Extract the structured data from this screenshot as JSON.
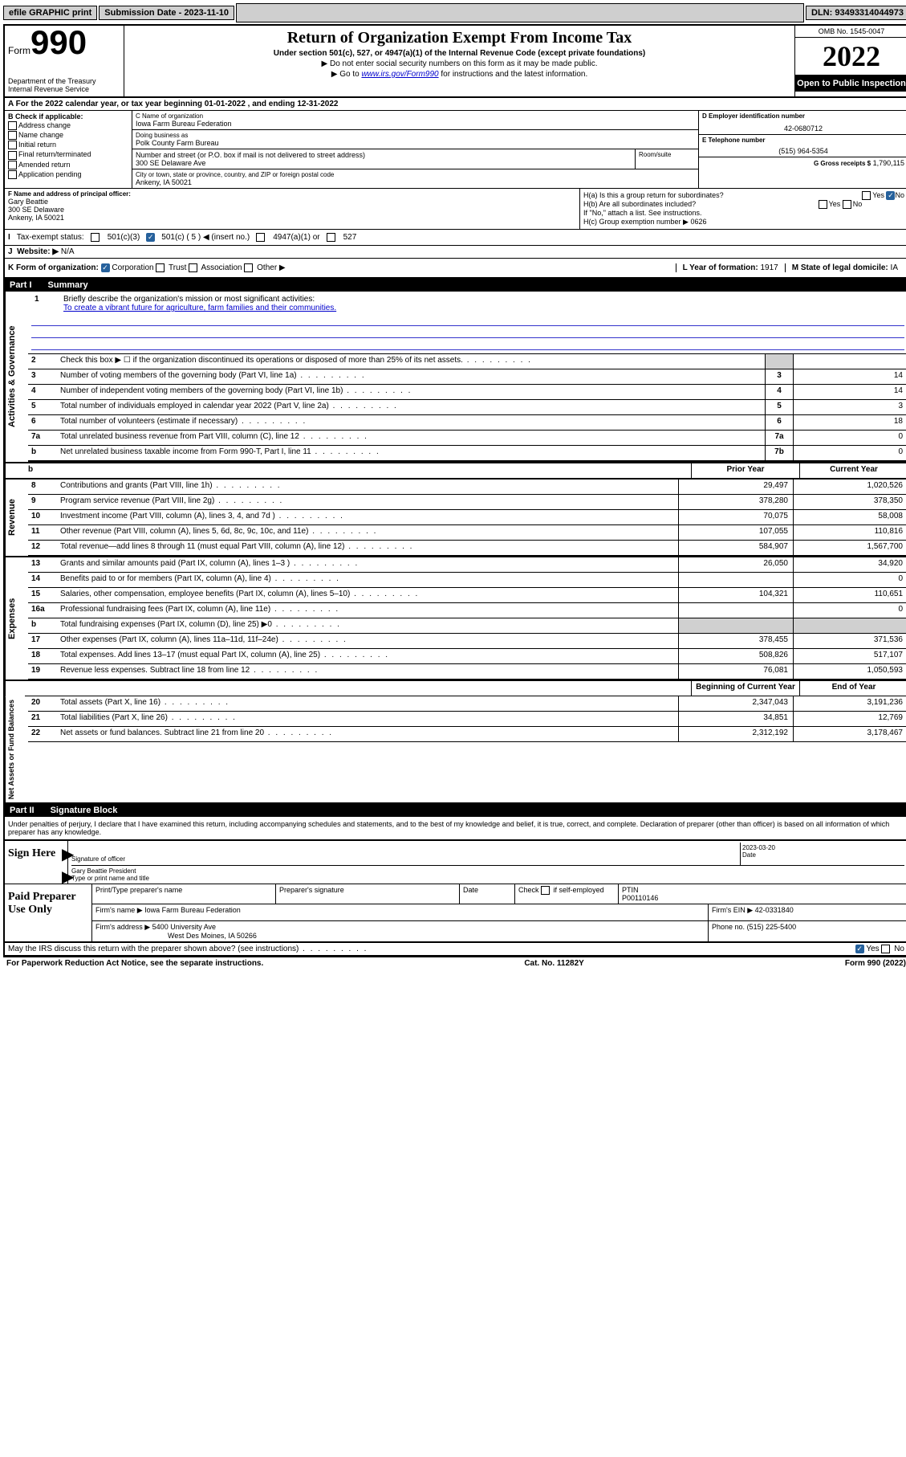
{
  "topbar": {
    "efile": "efile GRAPHIC print",
    "sub_label": "Submission Date ‐ 2023-11-10",
    "dln": "DLN: 93493314044973"
  },
  "header": {
    "form_word": "Form",
    "form_num": "990",
    "dept": "Department of the Treasury Internal Revenue Service",
    "title": "Return of Organization Exempt From Income Tax",
    "sub": "Under section 501(c), 527, or 4947(a)(1) of the Internal Revenue Code (except private foundations)",
    "instr1": "▶ Do not enter social security numbers on this form as it may be made public.",
    "instr2_pre": "▶ Go to ",
    "instr2_link": "www.irs.gov/Form990",
    "instr2_post": " for instructions and the latest information.",
    "omb": "OMB No. 1545-0047",
    "year": "2022",
    "open": "Open to Public Inspection"
  },
  "row_a": "A For the 2022 calendar year, or tax year beginning 01-01-2022   , and ending 12-31-2022",
  "col_b": {
    "head": "B Check if applicable:",
    "items": [
      "Address change",
      "Name change",
      "Initial return",
      "Final return/terminated",
      "Amended return",
      "Application pending"
    ]
  },
  "col_c": {
    "name_lab": "C Name of organization",
    "name": "Iowa Farm Bureau Federation",
    "dba_lab": "Doing business as",
    "dba": "Polk County Farm Bureau",
    "street_lab": "Number and street (or P.O. box if mail is not delivered to street address)",
    "room_lab": "Room/suite",
    "street": "300 SE Delaware Ave",
    "city_lab": "City or town, state or province, country, and ZIP or foreign postal code",
    "city": "Ankeny, IA  50021"
  },
  "col_d": {
    "ein_lab": "D Employer identification number",
    "ein": "42-0680712",
    "tel_lab": "E Telephone number",
    "tel": "(515) 964-5354",
    "gross_lab": "G Gross receipts $",
    "gross": "1,790,115"
  },
  "row_f": {
    "lab": "F Name and address of principal officer:",
    "name": "Gary Beattie",
    "street": "300 SE Delaware",
    "city": "Ankeny, IA  50021"
  },
  "row_h": {
    "a": "H(a)  Is this a group return for subordinates?",
    "b": "H(b)  Are all subordinates included?",
    "b_note": "If \"No,\" attach a list. See instructions.",
    "c": "H(c)  Group exemption number ▶",
    "c_val": "0626",
    "yes": "Yes",
    "no": "No"
  },
  "row_i": {
    "lab": "Tax-exempt status:",
    "o1": "501(c)(3)",
    "o2": "501(c) ( 5 ) ◀ (insert no.)",
    "o3": "4947(a)(1) or",
    "o4": "527"
  },
  "row_j": {
    "lab": "Website: ▶",
    "val": "N/A"
  },
  "row_k": {
    "lab": "K Form of organization:",
    "o1": "Corporation",
    "o2": "Trust",
    "o3": "Association",
    "o4": "Other ▶",
    "l_lab": "L Year of formation:",
    "l_val": "1917",
    "m_lab": "M State of legal domicile:",
    "m_val": "IA"
  },
  "part1": {
    "tag": "Part I",
    "title": "Summary"
  },
  "mission": {
    "num": "1",
    "lab": "Briefly describe the organization's mission or most significant activities:",
    "text": "To create a vibrant future for agriculture, farm families and their communities."
  },
  "lines_ag": [
    {
      "n": "2",
      "d": "Check this box ▶ ☐  if the organization discontinued its operations or disposed of more than 25% of its net assets.",
      "box": "",
      "v": ""
    },
    {
      "n": "3",
      "d": "Number of voting members of the governing body (Part VI, line 1a)",
      "box": "3",
      "v": "14"
    },
    {
      "n": "4",
      "d": "Number of independent voting members of the governing body (Part VI, line 1b)",
      "box": "4",
      "v": "14"
    },
    {
      "n": "5",
      "d": "Total number of individuals employed in calendar year 2022 (Part V, line 2a)",
      "box": "5",
      "v": "3"
    },
    {
      "n": "6",
      "d": "Total number of volunteers (estimate if necessary)",
      "box": "6",
      "v": "18"
    },
    {
      "n": "7a",
      "d": "Total unrelated business revenue from Part VIII, column (C), line 12",
      "box": "7a",
      "v": "0"
    },
    {
      "n": "b",
      "d": "Net unrelated business taxable income from Form 990-T, Part I, line 11",
      "box": "7b",
      "v": "0"
    }
  ],
  "year_head": {
    "prior": "Prior Year",
    "current": "Current Year"
  },
  "revenue": [
    {
      "n": "8",
      "d": "Contributions and grants (Part VIII, line 1h)",
      "p": "29,497",
      "c": "1,020,526"
    },
    {
      "n": "9",
      "d": "Program service revenue (Part VIII, line 2g)",
      "p": "378,280",
      "c": "378,350"
    },
    {
      "n": "10",
      "d": "Investment income (Part VIII, column (A), lines 3, 4, and 7d )",
      "p": "70,075",
      "c": "58,008"
    },
    {
      "n": "11",
      "d": "Other revenue (Part VIII, column (A), lines 5, 6d, 8c, 9c, 10c, and 11e)",
      "p": "107,055",
      "c": "110,816"
    },
    {
      "n": "12",
      "d": "Total revenue—add lines 8 through 11 (must equal Part VIII, column (A), line 12)",
      "p": "584,907",
      "c": "1,567,700"
    }
  ],
  "expenses": [
    {
      "n": "13",
      "d": "Grants and similar amounts paid (Part IX, column (A), lines 1–3 )",
      "p": "26,050",
      "c": "34,920"
    },
    {
      "n": "14",
      "d": "Benefits paid to or for members (Part IX, column (A), line 4)",
      "p": "",
      "c": "0"
    },
    {
      "n": "15",
      "d": "Salaries, other compensation, employee benefits (Part IX, column (A), lines 5–10)",
      "p": "104,321",
      "c": "110,651"
    },
    {
      "n": "16a",
      "d": "Professional fundraising fees (Part IX, column (A), line 11e)",
      "p": "",
      "c": "0"
    },
    {
      "n": "b",
      "d": "Total fundraising expenses (Part IX, column (D), line 25) ▶0",
      "p": "",
      "c": "",
      "gray": true
    },
    {
      "n": "17",
      "d": "Other expenses (Part IX, column (A), lines 11a–11d, 11f–24e)",
      "p": "378,455",
      "c": "371,536"
    },
    {
      "n": "18",
      "d": "Total expenses. Add lines 13–17 (must equal Part IX, column (A), line 25)",
      "p": "508,826",
      "c": "517,107"
    },
    {
      "n": "19",
      "d": "Revenue less expenses. Subtract line 18 from line 12",
      "p": "76,081",
      "c": "1,050,593"
    }
  ],
  "net_head": {
    "begin": "Beginning of Current Year",
    "end": "End of Year"
  },
  "net": [
    {
      "n": "20",
      "d": "Total assets (Part X, line 16)",
      "p": "2,347,043",
      "c": "3,191,236"
    },
    {
      "n": "21",
      "d": "Total liabilities (Part X, line 26)",
      "p": "34,851",
      "c": "12,769"
    },
    {
      "n": "22",
      "d": "Net assets or fund balances. Subtract line 21 from line 20",
      "p": "2,312,192",
      "c": "3,178,467"
    }
  ],
  "part2": {
    "tag": "Part II",
    "title": "Signature Block"
  },
  "sig": {
    "penalty": "Under penalties of perjury, I declare that I have examined this return, including accompanying schedules and statements, and to the best of my knowledge and belief, it is true, correct, and complete. Declaration of preparer (other than officer) is based on all information of which preparer has any knowledge.",
    "sign_here": "Sign Here",
    "sig_officer": "Signature of officer",
    "date": "2023-03-20",
    "date_lab": "Date",
    "name": "Gary Beattie  President",
    "name_lab": "Type or print name and title"
  },
  "prep": {
    "title": "Paid Preparer Use Only",
    "h1": "Print/Type preparer's name",
    "h2": "Preparer's signature",
    "h3": "Date",
    "h4_lab": "Check",
    "h4_txt": "if self-employed",
    "h5_lab": "PTIN",
    "h5_val": "P00110146",
    "firm_lab": "Firm's name    ▶",
    "firm": "Iowa Farm Bureau Federation",
    "ein_lab": "Firm's EIN ▶",
    "ein": "42-0331840",
    "addr_lab": "Firm's address ▶",
    "addr1": "5400 University Ave",
    "addr2": "West Des Moines, IA  50266",
    "phone_lab": "Phone no.",
    "phone": "(515) 225-5400"
  },
  "bottom": {
    "discuss": "May the IRS discuss this return with the preparer shown above? (see instructions)",
    "yes": "Yes",
    "no": "No"
  },
  "foot": {
    "left": "For Paperwork Reduction Act Notice, see the separate instructions.",
    "mid": "Cat. No. 11282Y",
    "right": "Form 990 (2022)"
  },
  "side_labels": {
    "ag": "Activities & Governance",
    "rev": "Revenue",
    "exp": "Expenses",
    "net": "Net Assets or Fund Balances"
  }
}
